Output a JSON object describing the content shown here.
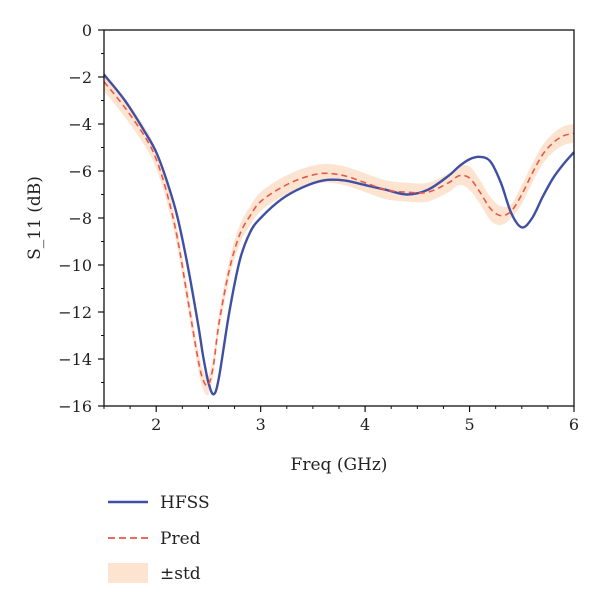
{
  "chart_data": {
    "type": "line",
    "title": "",
    "xlabel": "Freq (GHz)",
    "ylabel": "S_11 (dB)",
    "xlim": [
      1.5,
      6
    ],
    "ylim": [
      -16,
      0
    ],
    "xticks": [
      "2",
      "3",
      "4",
      "5",
      "6"
    ],
    "xtick_values": [
      2,
      3,
      4,
      5,
      6
    ],
    "yticks": [
      "0",
      "−2",
      "−4",
      "−6",
      "−8",
      "−10",
      "−12",
      "−14",
      "−16"
    ],
    "ytick_values": [
      0,
      -2,
      -4,
      -6,
      -8,
      -10,
      -12,
      -14,
      -16
    ],
    "grid": false,
    "legend_position": "bottom-left",
    "series": [
      {
        "name": "HFSS",
        "style": "solid",
        "color": "#3f4fa3",
        "x": [
          1.5,
          1.7,
          1.9,
          2.0,
          2.1,
          2.2,
          2.3,
          2.4,
          2.45,
          2.5,
          2.55,
          2.6,
          2.7,
          2.8,
          2.9,
          3.0,
          3.2,
          3.4,
          3.6,
          3.8,
          4.0,
          4.2,
          4.4,
          4.6,
          4.8,
          4.9,
          5.0,
          5.1,
          5.2,
          5.3,
          5.4,
          5.5,
          5.6,
          5.7,
          5.8,
          5.9,
          6.0
        ],
        "y": [
          -1.9,
          -3.0,
          -4.4,
          -5.2,
          -6.4,
          -7.9,
          -10.0,
          -12.5,
          -13.9,
          -15.0,
          -15.5,
          -14.8,
          -12.0,
          -9.8,
          -8.6,
          -8.0,
          -7.2,
          -6.7,
          -6.4,
          -6.4,
          -6.6,
          -6.8,
          -7.0,
          -6.8,
          -6.2,
          -5.8,
          -5.5,
          -5.4,
          -5.6,
          -6.5,
          -7.8,
          -8.4,
          -8.0,
          -7.1,
          -6.3,
          -5.7,
          -5.2
        ]
      },
      {
        "name": "Pred",
        "style": "dashed",
        "color": "#e8584a",
        "x": [
          1.5,
          1.7,
          1.9,
          2.0,
          2.1,
          2.2,
          2.3,
          2.4,
          2.45,
          2.5,
          2.55,
          2.6,
          2.7,
          2.8,
          2.9,
          3.0,
          3.2,
          3.4,
          3.6,
          3.8,
          4.0,
          4.2,
          4.4,
          4.6,
          4.8,
          4.9,
          5.0,
          5.1,
          5.2,
          5.3,
          5.4,
          5.5,
          5.6,
          5.7,
          5.8,
          5.9,
          6.0
        ],
        "y": [
          -2.2,
          -3.3,
          -4.6,
          -5.5,
          -6.9,
          -8.8,
          -11.4,
          -14.0,
          -14.9,
          -15.1,
          -14.2,
          -12.5,
          -10.2,
          -8.7,
          -7.9,
          -7.3,
          -6.7,
          -6.3,
          -6.1,
          -6.2,
          -6.5,
          -6.8,
          -6.9,
          -6.9,
          -6.5,
          -6.2,
          -6.3,
          -6.9,
          -7.6,
          -7.9,
          -7.7,
          -7.0,
          -6.1,
          -5.3,
          -4.8,
          -4.5,
          -4.4
        ]
      }
    ],
    "band": {
      "name": "±std",
      "color": "#fde4d0",
      "x": [
        1.5,
        1.7,
        1.9,
        2.0,
        2.1,
        2.2,
        2.3,
        2.4,
        2.45,
        2.5,
        2.55,
        2.6,
        2.7,
        2.8,
        2.9,
        3.0,
        3.2,
        3.4,
        3.6,
        3.8,
        4.0,
        4.2,
        4.4,
        4.6,
        4.8,
        4.9,
        5.0,
        5.1,
        5.2,
        5.3,
        5.4,
        5.5,
        5.6,
        5.7,
        5.8,
        5.9,
        6.0
      ],
      "lower": [
        -2.6,
        -3.7,
        -5.0,
        -5.9,
        -7.3,
        -9.2,
        -11.8,
        -14.4,
        -15.3,
        -15.5,
        -14.6,
        -12.9,
        -10.6,
        -9.1,
        -8.3,
        -7.7,
        -7.1,
        -6.7,
        -6.5,
        -6.6,
        -6.9,
        -7.2,
        -7.3,
        -7.3,
        -6.9,
        -6.6,
        -6.8,
        -7.4,
        -8.1,
        -8.3,
        -8.0,
        -7.4,
        -6.5,
        -5.7,
        -5.2,
        -4.9,
        -4.8
      ],
      "upper": [
        -1.8,
        -2.9,
        -4.2,
        -5.1,
        -6.5,
        -8.4,
        -11.0,
        -13.6,
        -14.5,
        -14.7,
        -13.8,
        -12.1,
        -9.8,
        -8.3,
        -7.5,
        -6.9,
        -6.3,
        -5.9,
        -5.7,
        -5.8,
        -6.1,
        -6.4,
        -6.5,
        -6.5,
        -6.1,
        -5.8,
        -5.8,
        -6.4,
        -7.1,
        -7.5,
        -7.4,
        -6.6,
        -5.7,
        -4.9,
        -4.4,
        -4.1,
        -4.0
      ]
    }
  }
}
